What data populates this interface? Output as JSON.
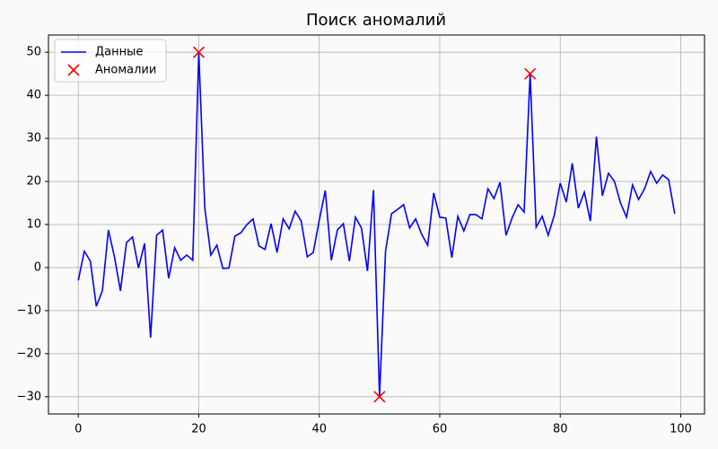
{
  "chart_data": {
    "type": "line",
    "title": "Поиск аномалий",
    "x": [
      0,
      1,
      2,
      3,
      4,
      5,
      6,
      7,
      8,
      9,
      10,
      11,
      12,
      13,
      14,
      15,
      16,
      17,
      18,
      19,
      20,
      21,
      22,
      23,
      24,
      25,
      26,
      27,
      28,
      29,
      30,
      31,
      32,
      33,
      34,
      35,
      36,
      37,
      38,
      39,
      40,
      41,
      42,
      43,
      44,
      45,
      46,
      47,
      48,
      49,
      50,
      51,
      52,
      53,
      54,
      55,
      56,
      57,
      58,
      59,
      60,
      61,
      62,
      63,
      64,
      65,
      66,
      67,
      68,
      69,
      70,
      71,
      72,
      73,
      74,
      75,
      76,
      77,
      78,
      79,
      80,
      81,
      82,
      83,
      84,
      85,
      86,
      87,
      88,
      89,
      90,
      91,
      92,
      93,
      94,
      95,
      96,
      97,
      98,
      99
    ],
    "series": [
      {
        "name": "Данные",
        "color": "#0000ff",
        "values": [
          -3,
          3.8,
          1.5,
          -9,
          -5.4,
          8.7,
          2.5,
          -5.4,
          5.8,
          7.1,
          -0.1,
          5.6,
          -16.3,
          7.5,
          8.7,
          -2.5,
          4.6,
          1.7,
          2.9,
          1.7,
          50,
          13.8,
          2.9,
          5.2,
          -0.2,
          -0.1,
          7.3,
          8.1,
          10,
          11.3,
          5,
          4.2,
          10.2,
          3.5,
          11.3,
          9,
          13.1,
          10.8,
          2.5,
          3.5,
          11,
          17.9,
          1.7,
          8.7,
          10.2,
          1.5,
          11.7,
          9.2,
          -0.8,
          18,
          -30,
          3.8,
          12.5,
          13.5,
          14.6,
          9.2,
          11.3,
          7.7,
          5.2,
          17.3,
          11.7,
          11.5,
          2.3,
          11.9,
          8.5,
          12.3,
          12.3,
          11.3,
          18.3,
          16,
          19.8,
          7.5,
          11.5,
          14.6,
          12.9,
          45,
          9.4,
          11.9,
          7.5,
          12.1,
          19.6,
          15.2,
          24.2,
          13.8,
          17.5,
          10.8,
          30.4,
          16.7,
          21.9,
          20,
          15,
          11.7,
          19.2,
          15.8,
          18.3,
          22.3,
          19.6,
          21.5,
          20.4,
          12.5
        ]
      },
      {
        "name": "Аномалии",
        "color": "#ff0000",
        "type": "scatter",
        "x": [
          20,
          50,
          75
        ],
        "values": [
          50,
          -30,
          45
        ]
      }
    ],
    "xlim": [
      -4.95,
      103.95
    ],
    "ylim": [
      -34,
      54
    ],
    "xticks": [
      0,
      20,
      40,
      60,
      80,
      100
    ],
    "yticks": [
      {
        "value": -30,
        "label": "−30"
      },
      {
        "value": -20,
        "label": "−20"
      },
      {
        "value": -10,
        "label": "−10"
      },
      0,
      10,
      20,
      30,
      40,
      50
    ],
    "grid": true,
    "legend": "upper-left"
  }
}
